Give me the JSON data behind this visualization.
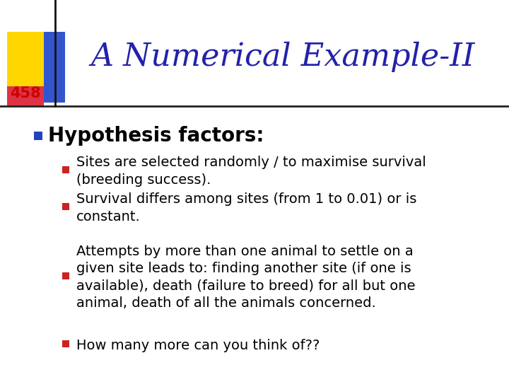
{
  "title": "A Numerical Example-II",
  "title_color": "#2222AA",
  "title_fontsize": 32,
  "slide_number": "458",
  "slide_number_color": "#CC0000",
  "slide_number_fontsize": 15,
  "background_color": "#FFFFFF",
  "bullet_square_color": "#2244BB",
  "red_square_color": "#CC2222",
  "main_bullet": "Hypothesis factors:",
  "main_bullet_fontsize": 20,
  "sub_bullets": [
    "Sites are selected randomly / to maximise survival\n(breeding success).",
    "Survival differs among sites (from 1 to 0.01) or is\nconstant.",
    "Attempts by more than one animal to settle on a\ngiven site leads to: finding another site (if one is\navailable), death (failure to breed) for all but one\nanimal, death of all the animals concerned.",
    "How many more can you think of??"
  ],
  "sub_bullet_fontsize": 14
}
